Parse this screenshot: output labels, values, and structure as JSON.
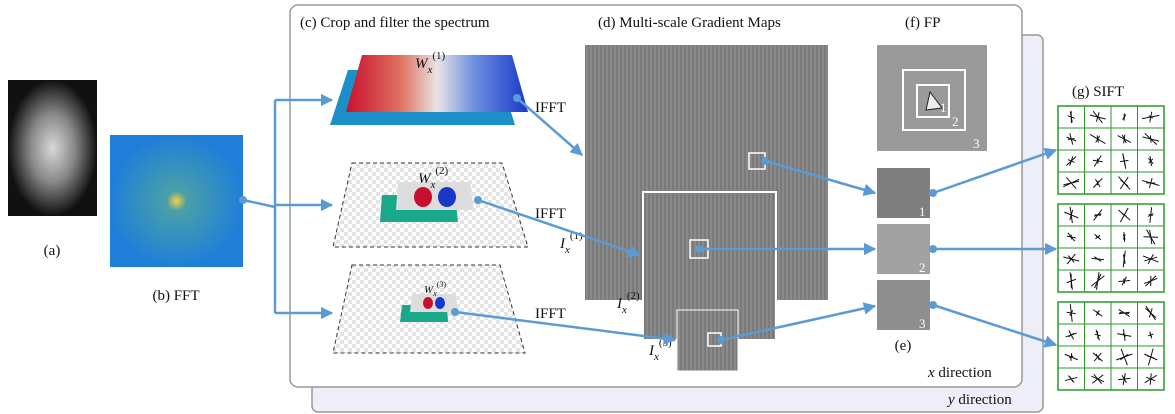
{
  "panels": {
    "a": "(a)",
    "b": "(b) FFT",
    "c": "(c) Crop and filter the spectrum",
    "d": "(d) Multi-scale Gradient Maps",
    "e": "(e)",
    "f": "(f) FP",
    "g": "(g) SIFT"
  },
  "directions": {
    "x": {
      "symbol": "x",
      "text": "direction"
    },
    "y": {
      "symbol": "y",
      "text": "direction"
    }
  },
  "ifft": [
    "IFFT",
    "IFFT",
    "IFFT"
  ],
  "filters": [
    {
      "base": "W",
      "sub": "x",
      "sup": "(1)"
    },
    {
      "base": "W",
      "sub": "x",
      "sup": "(2)"
    },
    {
      "base": "W",
      "sub": "x",
      "sup": "(3)"
    }
  ],
  "gradient_maps": [
    {
      "base": "I",
      "sub": "x",
      "sup": "(1)"
    },
    {
      "base": "I",
      "sub": "x",
      "sup": "(2)"
    },
    {
      "base": "I",
      "sub": "x",
      "sup": "(3)"
    }
  ],
  "scale_labels": [
    "1",
    "2",
    "3"
  ],
  "patch_labels": [
    "1",
    "2",
    "3"
  ]
}
